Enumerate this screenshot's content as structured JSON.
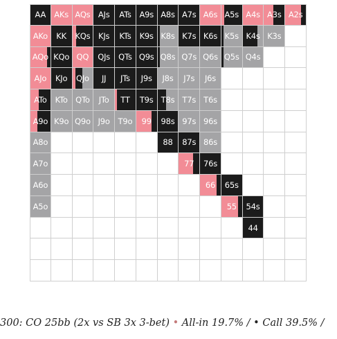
{
  "caption": {
    "prefix": "300: CO 25bb (2x vs SB 3x 3-bet)",
    "allin_dot": "•",
    "allin_text": "All-in 19.7% /",
    "call_dot": "•",
    "call_text": "Call 39.5% /"
  },
  "chart_data": {
    "type": "heatmap",
    "title": "",
    "colors": {
      "allin": "#f28c96",
      "call": "#1b1b1b",
      "fold": "#a4a4a6",
      "empty": "#ffffff"
    },
    "grid": [
      [
        {
          "h": "AA",
          "a": 0,
          "c": 1,
          "f": 0
        },
        {
          "h": "AKs",
          "a": 1,
          "c": 0,
          "f": 0
        },
        {
          "h": "AQs",
          "a": 1,
          "c": 0,
          "f": 0
        },
        {
          "h": "AJs",
          "a": 0,
          "c": 1,
          "f": 0
        },
        {
          "h": "ATs",
          "a": 0,
          "c": 1,
          "f": 0
        },
        {
          "h": "A9s",
          "a": 0,
          "c": 1,
          "f": 0
        },
        {
          "h": "A8s",
          "a": 0,
          "c": 1,
          "f": 0
        },
        {
          "h": "A7s",
          "a": 0,
          "c": 1,
          "f": 0
        },
        {
          "h": "A6s",
          "a": 1,
          "c": 0,
          "f": 0
        },
        {
          "h": "A5s",
          "a": 0.15,
          "c": 0.85,
          "f": 0
        },
        {
          "h": "A4s",
          "a": 1,
          "c": 0,
          "f": 0
        },
        {
          "h": "A3s",
          "a": 0.45,
          "c": 0.55,
          "f": 0
        },
        {
          "h": "A2s",
          "a": 0.75,
          "c": 0.25,
          "f": 0
        }
      ],
      [
        {
          "h": "AKo",
          "a": 1,
          "c": 0,
          "f": 0
        },
        {
          "h": "KK",
          "a": 0,
          "c": 1,
          "f": 0
        },
        {
          "h": "KQs",
          "a": 0.2,
          "c": 0.8,
          "f": 0
        },
        {
          "h": "KJs",
          "a": 0,
          "c": 1,
          "f": 0
        },
        {
          "h": "KTs",
          "a": 0,
          "c": 1,
          "f": 0
        },
        {
          "h": "K9s",
          "a": 0,
          "c": 1,
          "f": 0
        },
        {
          "h": "K8s",
          "a": 0,
          "c": 0.1,
          "f": 0.9
        },
        {
          "h": "K7s",
          "a": 0,
          "c": 1,
          "f": 0
        },
        {
          "h": "K6s",
          "a": 0,
          "c": 1,
          "f": 0
        },
        {
          "h": "K5s",
          "a": 0,
          "c": 0.1,
          "f": 0.9
        },
        {
          "h": "K4s",
          "a": 0,
          "c": 0.7,
          "f": 0.3
        },
        {
          "h": "K3s",
          "a": 0,
          "c": 0,
          "f": 1
        },
        {
          "h": "",
          "a": 0,
          "c": 0,
          "f": 0
        }
      ],
      [
        {
          "h": "AQo",
          "a": 0.85,
          "c": 0.15,
          "f": 0
        },
        {
          "h": "KQo",
          "a": 0,
          "c": 1,
          "f": 0
        },
        {
          "h": "QQ",
          "a": 1,
          "c": 0,
          "f": 0
        },
        {
          "h": "QJs",
          "a": 0,
          "c": 1,
          "f": 0
        },
        {
          "h": "QTs",
          "a": 0,
          "c": 1,
          "f": 0
        },
        {
          "h": "Q9s",
          "a": 0,
          "c": 1,
          "f": 0
        },
        {
          "h": "Q8s",
          "a": 0,
          "c": 0.1,
          "f": 0.9
        },
        {
          "h": "Q7s",
          "a": 0,
          "c": 0,
          "f": 1
        },
        {
          "h": "Q6s",
          "a": 0,
          "c": 0,
          "f": 1
        },
        {
          "h": "Q5s",
          "a": 0,
          "c": 0.1,
          "f": 0.9
        },
        {
          "h": "Q4s",
          "a": 0,
          "c": 0,
          "f": 1
        },
        {
          "h": "",
          "a": 0,
          "c": 0,
          "f": 0
        },
        {
          "h": "",
          "a": 0,
          "c": 0,
          "f": 0
        }
      ],
      [
        {
          "h": "AJo",
          "a": 1,
          "c": 0,
          "f": 0
        },
        {
          "h": "KJo",
          "a": 0,
          "c": 1,
          "f": 0
        },
        {
          "h": "QJo",
          "a": 0.15,
          "c": 0.35,
          "f": 0.5
        },
        {
          "h": "JJ",
          "a": 0,
          "c": 1,
          "f": 0
        },
        {
          "h": "JTs",
          "a": 0,
          "c": 1,
          "f": 0
        },
        {
          "h": "J9s",
          "a": 0,
          "c": 1,
          "f": 0
        },
        {
          "h": "J8s",
          "a": 0,
          "c": 0,
          "f": 1
        },
        {
          "h": "J7s",
          "a": 0,
          "c": 0,
          "f": 1
        },
        {
          "h": "J6s",
          "a": 0,
          "c": 0,
          "f": 1
        },
        {
          "h": "",
          "a": 0,
          "c": 0,
          "f": 0
        },
        {
          "h": "",
          "a": 0,
          "c": 0,
          "f": 0
        },
        {
          "h": "",
          "a": 0,
          "c": 0,
          "f": 0
        },
        {
          "h": "",
          "a": 0,
          "c": 0,
          "f": 0
        }
      ],
      [
        {
          "h": "ATo",
          "a": 0.4,
          "c": 0.6,
          "f": 0
        },
        {
          "h": "KTo",
          "a": 0,
          "c": 0,
          "f": 1
        },
        {
          "h": "QTo",
          "a": 0,
          "c": 0,
          "f": 1
        },
        {
          "h": "JTo",
          "a": 0,
          "c": 0,
          "f": 1
        },
        {
          "h": "TT",
          "a": 0.1,
          "c": 0.9,
          "f": 0
        },
        {
          "h": "T9s",
          "a": 0,
          "c": 1,
          "f": 0
        },
        {
          "h": "T8s",
          "a": 0,
          "c": 0.4,
          "f": 0.6
        },
        {
          "h": "T7s",
          "a": 0,
          "c": 0,
          "f": 1
        },
        {
          "h": "T6s",
          "a": 0,
          "c": 0,
          "f": 1
        },
        {
          "h": "",
          "a": 0,
          "c": 0,
          "f": 0
        },
        {
          "h": "",
          "a": 0,
          "c": 0,
          "f": 0
        },
        {
          "h": "",
          "a": 0,
          "c": 0,
          "f": 0
        },
        {
          "h": "",
          "a": 0,
          "c": 0,
          "f": 0
        }
      ],
      [
        {
          "h": "A9o",
          "a": 0.35,
          "c": 0.65,
          "f": 0
        },
        {
          "h": "K9o",
          "a": 0,
          "c": 0,
          "f": 1
        },
        {
          "h": "Q9o",
          "a": 0,
          "c": 0,
          "f": 1
        },
        {
          "h": "J9o",
          "a": 0,
          "c": 0,
          "f": 1
        },
        {
          "h": "T9o",
          "a": 0,
          "c": 0,
          "f": 1
        },
        {
          "h": "99",
          "a": 0.75,
          "c": 0.25,
          "f": 0
        },
        {
          "h": "98s",
          "a": 0,
          "c": 1,
          "f": 0
        },
        {
          "h": "97s",
          "a": 0,
          "c": 0,
          "f": 1
        },
        {
          "h": "96s",
          "a": 0,
          "c": 0,
          "f": 1
        },
        {
          "h": "",
          "a": 0,
          "c": 0,
          "f": 0
        },
        {
          "h": "",
          "a": 0,
          "c": 0,
          "f": 0
        },
        {
          "h": "",
          "a": 0,
          "c": 0,
          "f": 0
        },
        {
          "h": "",
          "a": 0,
          "c": 0,
          "f": 0
        }
      ],
      [
        {
          "h": "A8o",
          "a": 0,
          "c": 0,
          "f": 1
        },
        {
          "h": "",
          "a": 0,
          "c": 0,
          "f": 0
        },
        {
          "h": "",
          "a": 0,
          "c": 0,
          "f": 0
        },
        {
          "h": "",
          "a": 0,
          "c": 0,
          "f": 0
        },
        {
          "h": "",
          "a": 0,
          "c": 0,
          "f": 0
        },
        {
          "h": "",
          "a": 0,
          "c": 0,
          "f": 0
        },
        {
          "h": "88",
          "a": 0,
          "c": 1,
          "f": 0
        },
        {
          "h": "87s",
          "a": 0,
          "c": 1,
          "f": 0
        },
        {
          "h": "86s",
          "a": 0,
          "c": 0,
          "f": 1
        },
        {
          "h": "",
          "a": 0,
          "c": 0,
          "f": 0
        },
        {
          "h": "",
          "a": 0,
          "c": 0,
          "f": 0
        },
        {
          "h": "",
          "a": 0,
          "c": 0,
          "f": 0
        },
        {
          "h": "",
          "a": 0,
          "c": 0,
          "f": 0
        }
      ],
      [
        {
          "h": "A7o",
          "a": 0,
          "c": 0,
          "f": 1
        },
        {
          "h": "",
          "a": 0,
          "c": 0,
          "f": 0
        },
        {
          "h": "",
          "a": 0,
          "c": 0,
          "f": 0
        },
        {
          "h": "",
          "a": 0,
          "c": 0,
          "f": 0
        },
        {
          "h": "",
          "a": 0,
          "c": 0,
          "f": 0
        },
        {
          "h": "",
          "a": 0,
          "c": 0,
          "f": 0
        },
        {
          "h": "",
          "a": 0,
          "c": 0,
          "f": 0
        },
        {
          "h": "77",
          "a": 0.7,
          "c": 0.3,
          "f": 0
        },
        {
          "h": "76s",
          "a": 0,
          "c": 1,
          "f": 0
        },
        {
          "h": "",
          "a": 0,
          "c": 0,
          "f": 0
        },
        {
          "h": "",
          "a": 0,
          "c": 0,
          "f": 0
        },
        {
          "h": "",
          "a": 0,
          "c": 0,
          "f": 0
        },
        {
          "h": "",
          "a": 0,
          "c": 0,
          "f": 0
        }
      ],
      [
        {
          "h": "A6o",
          "a": 0,
          "c": 0,
          "f": 1
        },
        {
          "h": "",
          "a": 0,
          "c": 0,
          "f": 0
        },
        {
          "h": "",
          "a": 0,
          "c": 0,
          "f": 0
        },
        {
          "h": "",
          "a": 0,
          "c": 0,
          "f": 0
        },
        {
          "h": "",
          "a": 0,
          "c": 0,
          "f": 0
        },
        {
          "h": "",
          "a": 0,
          "c": 0,
          "f": 0
        },
        {
          "h": "",
          "a": 0,
          "c": 0,
          "f": 0
        },
        {
          "h": "",
          "a": 0,
          "c": 0,
          "f": 0
        },
        {
          "h": "66",
          "a": 0.8,
          "c": 0.2,
          "f": 0
        },
        {
          "h": "65s",
          "a": 0,
          "c": 1,
          "f": 0
        },
        {
          "h": "",
          "a": 0,
          "c": 0,
          "f": 0
        },
        {
          "h": "",
          "a": 0,
          "c": 0,
          "f": 0
        },
        {
          "h": "",
          "a": 0,
          "c": 0,
          "f": 0
        }
      ],
      [
        {
          "h": "A5o",
          "a": 0,
          "c": 0,
          "f": 1
        },
        {
          "h": "",
          "a": 0,
          "c": 0,
          "f": 0
        },
        {
          "h": "",
          "a": 0,
          "c": 0,
          "f": 0
        },
        {
          "h": "",
          "a": 0,
          "c": 0,
          "f": 0
        },
        {
          "h": "",
          "a": 0,
          "c": 0,
          "f": 0
        },
        {
          "h": "",
          "a": 0,
          "c": 0,
          "f": 0
        },
        {
          "h": "",
          "a": 0,
          "c": 0,
          "f": 0
        },
        {
          "h": "",
          "a": 0,
          "c": 0,
          "f": 0
        },
        {
          "h": "",
          "a": 0,
          "c": 0,
          "f": 0
        },
        {
          "h": "55",
          "a": 0.8,
          "c": 0.2,
          "f": 0
        },
        {
          "h": "54s",
          "a": 0,
          "c": 1,
          "f": 0
        },
        {
          "h": "",
          "a": 0,
          "c": 0,
          "f": 0
        },
        {
          "h": "",
          "a": 0,
          "c": 0,
          "f": 0
        }
      ],
      [
        {
          "h": "",
          "a": 0,
          "c": 0,
          "f": 0
        },
        {
          "h": "",
          "a": 0,
          "c": 0,
          "f": 0
        },
        {
          "h": "",
          "a": 0,
          "c": 0,
          "f": 0
        },
        {
          "h": "",
          "a": 0,
          "c": 0,
          "f": 0
        },
        {
          "h": "",
          "a": 0,
          "c": 0,
          "f": 0
        },
        {
          "h": "",
          "a": 0,
          "c": 0,
          "f": 0
        },
        {
          "h": "",
          "a": 0,
          "c": 0,
          "f": 0
        },
        {
          "h": "",
          "a": 0,
          "c": 0,
          "f": 0
        },
        {
          "h": "",
          "a": 0,
          "c": 0,
          "f": 0
        },
        {
          "h": "",
          "a": 0,
          "c": 0,
          "f": 0
        },
        {
          "h": "44",
          "a": 0,
          "c": 1,
          "f": 0
        },
        {
          "h": "",
          "a": 0,
          "c": 0,
          "f": 0
        },
        {
          "h": "",
          "a": 0,
          "c": 0,
          "f": 0
        }
      ],
      [
        {
          "h": "",
          "a": 0,
          "c": 0,
          "f": 0
        },
        {
          "h": "",
          "a": 0,
          "c": 0,
          "f": 0
        },
        {
          "h": "",
          "a": 0,
          "c": 0,
          "f": 0
        },
        {
          "h": "",
          "a": 0,
          "c": 0,
          "f": 0
        },
        {
          "h": "",
          "a": 0,
          "c": 0,
          "f": 0
        },
        {
          "h": "",
          "a": 0,
          "c": 0,
          "f": 0
        },
        {
          "h": "",
          "a": 0,
          "c": 0,
          "f": 0
        },
        {
          "h": "",
          "a": 0,
          "c": 0,
          "f": 0
        },
        {
          "h": "",
          "a": 0,
          "c": 0,
          "f": 0
        },
        {
          "h": "",
          "a": 0,
          "c": 0,
          "f": 0
        },
        {
          "h": "",
          "a": 0,
          "c": 0,
          "f": 0
        },
        {
          "h": "",
          "a": 0,
          "c": 0,
          "f": 0
        },
        {
          "h": "",
          "a": 0,
          "c": 0,
          "f": 0
        }
      ],
      [
        {
          "h": "",
          "a": 0,
          "c": 0,
          "f": 0
        },
        {
          "h": "",
          "a": 0,
          "c": 0,
          "f": 0
        },
        {
          "h": "",
          "a": 0,
          "c": 0,
          "f": 0
        },
        {
          "h": "",
          "a": 0,
          "c": 0,
          "f": 0
        },
        {
          "h": "",
          "a": 0,
          "c": 0,
          "f": 0
        },
        {
          "h": "",
          "a": 0,
          "c": 0,
          "f": 0
        },
        {
          "h": "",
          "a": 0,
          "c": 0,
          "f": 0
        },
        {
          "h": "",
          "a": 0,
          "c": 0,
          "f": 0
        },
        {
          "h": "",
          "a": 0,
          "c": 0,
          "f": 0
        },
        {
          "h": "",
          "a": 0,
          "c": 0,
          "f": 0
        },
        {
          "h": "",
          "a": 0,
          "c": 0,
          "f": 0
        },
        {
          "h": "",
          "a": 0,
          "c": 0,
          "f": 0
        },
        {
          "h": "",
          "a": 0,
          "c": 0,
          "f": 0
        }
      ]
    ]
  }
}
